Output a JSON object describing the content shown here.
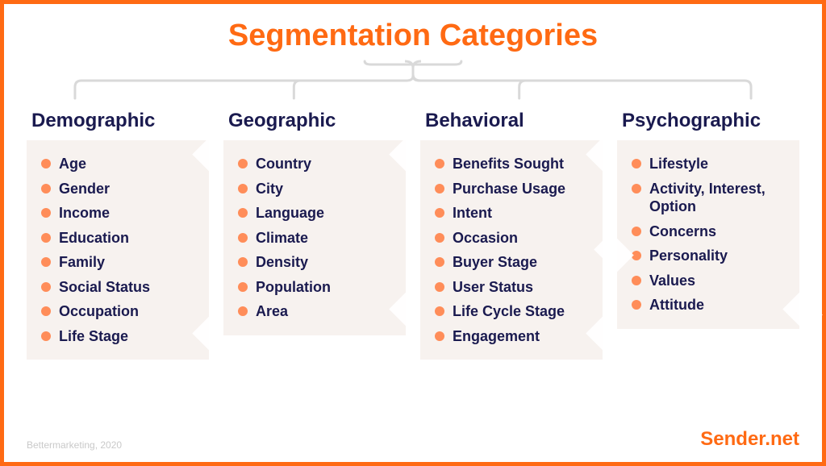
{
  "title": "Segmentation Categories",
  "styling": {
    "border_color": "#ff6a13",
    "title_color": "#ff6a13",
    "title_fontsize": 38,
    "heading_color": "#1a1a4f",
    "heading_fontsize": 24,
    "item_fontsize": 18,
    "item_color": "#1a1a4f",
    "column_bg": "#f7f2ef",
    "connector_color": "#d9d9d9",
    "bullet_color": "#ff8d59",
    "attribution_color": "#c9c9c9",
    "brand_color": "#ff6a13"
  },
  "columns": [
    {
      "title": "Demographic",
      "items": [
        "Age",
        "Gender",
        "Income",
        "Education",
        "Family",
        "Social Status",
        "Occupation",
        "Life Stage"
      ]
    },
    {
      "title": "Geographic",
      "items": [
        "Country",
        "City",
        "Language",
        "Climate",
        "Density",
        "Population",
        "Area"
      ]
    },
    {
      "title": "Behavioral",
      "items": [
        "Benefits Sought",
        "Purchase Usage",
        "Intent",
        "Occasion",
        "Buyer Stage",
        "User Status",
        "Life Cycle Stage",
        "Engagement"
      ]
    },
    {
      "title": "Psychographic",
      "items": [
        "Lifestyle",
        "Activity, Interest, Option",
        "Concerns",
        "Personality",
        "Values",
        "Attitude"
      ]
    }
  ],
  "footer": {
    "attribution": "Bettermarketing, 2020",
    "brand": "Sender.net"
  }
}
